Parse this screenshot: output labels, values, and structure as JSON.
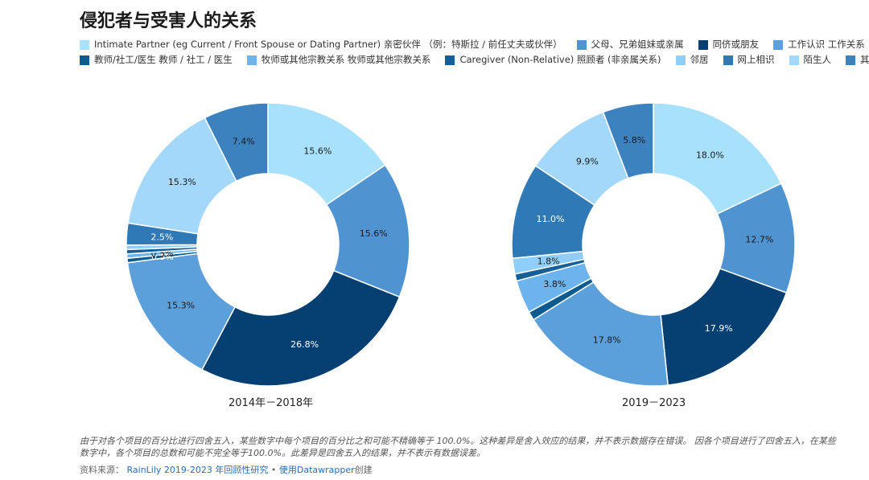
{
  "title": "侵犯者与受害人的关系",
  "chart_data": {
    "type": "pie",
    "categories": [
      "Intimate Partner (eg Current / Front Spouse or Dating Partner) 亲密伙伴 （例：特斯拉 / 前任丈夫或伙伴）",
      "父母、兄弟姐妹或亲属",
      "同侪或朋友",
      "工作认识 工作关系",
      "教师/社工/医生 教师 / 社工 / 医生",
      "牧师或其他宗教关系 牧师或其他宗教关系",
      "Caregiver (Non-Relative) 照顾者 (非亲属关系)",
      "邻居",
      "网上相识",
      "陌生人",
      "其他"
    ],
    "colors": [
      "#a8e1fb",
      "#4f93d1",
      "#063f72",
      "#5b9fdb",
      "#0b5a90",
      "#6db4ee",
      "#175f98",
      "#8fcdfa",
      "#2f79b6",
      "#a3d8fb",
      "#3c82be"
    ],
    "series": [
      {
        "name": "2014年－2018年",
        "values": [
          15.6,
          15.6,
          26.8,
          15.3,
          0.5,
          0.5,
          0.5,
          0.5,
          2.5,
          15.3,
          7.4
        ],
        "labels": [
          "15.6%",
          "15.6%",
          "26.8%",
          "15.3%",
          "0.5%",
          "0.5%",
          "",
          "",
          "2.5%",
          "15.3%",
          "7.4%"
        ]
      },
      {
        "name": "2019－2023",
        "values": [
          18.0,
          12.7,
          17.9,
          17.8,
          1.0,
          3.8,
          0.8,
          1.8,
          11.0,
          9.9,
          5.8
        ],
        "labels": [
          "18.0%",
          "12.7%",
          "17.9%",
          "17.8%",
          "",
          "3.8%",
          "",
          "1.8%",
          "11.0%",
          "9.9%",
          "5.8%"
        ]
      }
    ]
  },
  "footnote": "由于对各个项目的百分比进行四舍五入，某些数字中每个项目的百分比之和可能不精确等于 100.0%。这种差异是舍入效应的结果，并不表示数据存在错误。 因各个项目进行了四舍五入，在某些数字中，各个项目的总数和可能不完全等于100.0%。此差异是四舍五入的结果，并不表示有数据误差。",
  "source": {
    "prefix": "资料来源：",
    "link": "RainLily 2019-2023 年回顾性研究",
    "sep": " • ",
    "tool_link": "使用Datawrapper",
    "suffix": "创建"
  }
}
